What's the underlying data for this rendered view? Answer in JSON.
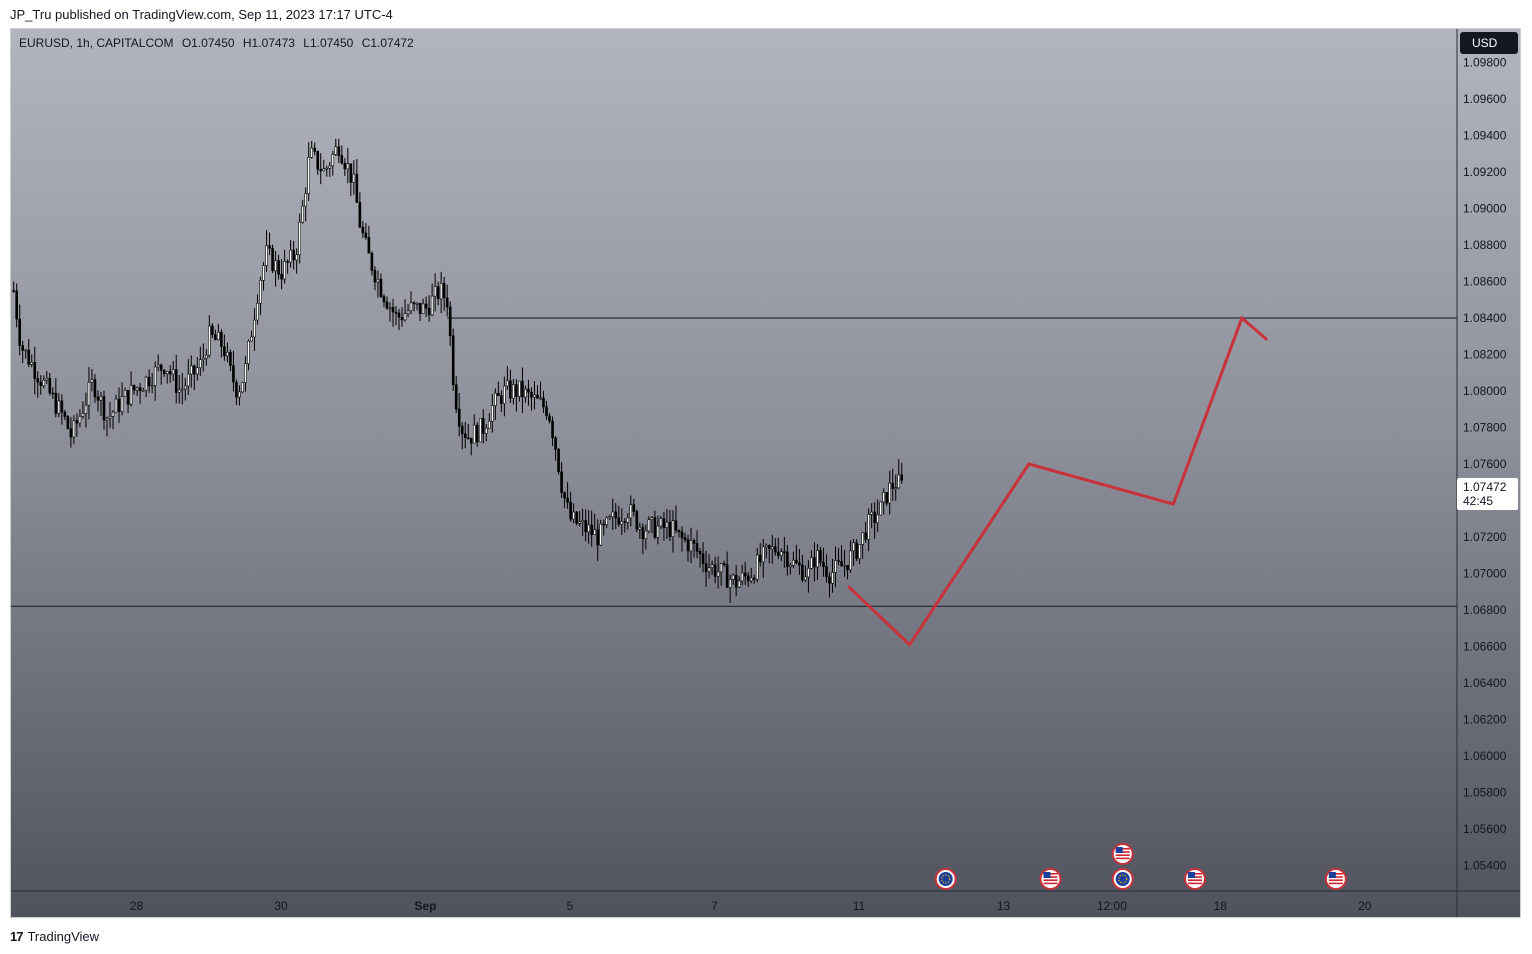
{
  "header": {
    "published_text": "JP_Tru published on TradingView.com, Sep 11, 2023 17:17 UTC-4"
  },
  "legend": {
    "symbol": "EURUSD, 1h, CAPITALCOM",
    "open": "O1.07450",
    "high": "H1.07473",
    "low": "L1.07450",
    "close": "C1.07472"
  },
  "currency_button": "USD",
  "last_price": {
    "price": "1.07472",
    "countdown": "42:45"
  },
  "footer": {
    "logo_text": "TradingView"
  },
  "colors": {
    "projection": "#c8323a",
    "candles": "#000000",
    "levels": "#2a2e39"
  },
  "chart_data": {
    "type": "candlestick",
    "ylim": [
      1.052,
      1.098
    ],
    "y_ticks": [
      "1.05400",
      "1.05600",
      "1.05800",
      "1.06000",
      "1.06200",
      "1.06400",
      "1.06600",
      "1.06800",
      "1.07000",
      "1.07200",
      "1.07400",
      "1.07600",
      "1.07800",
      "1.08000",
      "1.08200",
      "1.08400",
      "1.08600",
      "1.08800",
      "1.09000",
      "1.09200",
      "1.09400",
      "1.09600",
      "1.09800"
    ],
    "x_ticks": [
      {
        "label": "28",
        "pos": 0
      },
      {
        "label": "30",
        "pos": 2
      },
      {
        "label": "Sep",
        "pos": 4
      },
      {
        "label": "5",
        "pos": 6
      },
      {
        "label": "7",
        "pos": 8
      },
      {
        "label": "11",
        "pos": 10
      },
      {
        "label": "13",
        "pos": 12
      },
      {
        "label": "12:00",
        "pos": 13.5
      },
      {
        "label": "18",
        "pos": 15
      },
      {
        "label": "20",
        "pos": 17
      }
    ],
    "price_path": [
      [
        -1.7,
        1.0855
      ],
      [
        -1.6,
        1.0825
      ],
      [
        -1.3,
        1.0805
      ],
      [
        -1.0,
        1.0785
      ],
      [
        -0.9,
        1.0775
      ],
      [
        -0.6,
        1.0805
      ],
      [
        -0.4,
        1.0785
      ],
      [
        -0.2,
        1.0795
      ],
      [
        0.1,
        1.0805
      ],
      [
        0.4,
        1.0815
      ],
      [
        0.6,
        1.08
      ],
      [
        0.9,
        1.0815
      ],
      [
        1.0,
        1.083
      ],
      [
        1.2,
        1.0825
      ],
      [
        1.3,
        1.081
      ],
      [
        1.4,
        1.08
      ],
      [
        1.5,
        1.081
      ],
      [
        1.6,
        1.0835
      ],
      [
        1.7,
        1.086
      ],
      [
        1.8,
        1.0875
      ],
      [
        2.0,
        1.0865
      ],
      [
        2.1,
        1.087
      ],
      [
        2.2,
        1.0875
      ],
      [
        2.3,
        1.09
      ],
      [
        2.4,
        1.093
      ],
      [
        2.6,
        1.092
      ],
      [
        2.8,
        1.0935
      ],
      [
        3.0,
        1.0915
      ],
      [
        3.1,
        1.089
      ],
      [
        3.2,
        1.0875
      ],
      [
        3.4,
        1.0855
      ],
      [
        3.6,
        1.084
      ],
      [
        3.8,
        1.0845
      ],
      [
        4.0,
        1.0845
      ],
      [
        4.2,
        1.0855
      ],
      [
        4.3,
        1.085
      ],
      [
        4.4,
        1.08
      ],
      [
        4.5,
        1.078
      ],
      [
        4.6,
        1.0775
      ],
      [
        4.8,
        1.078
      ],
      [
        4.9,
        1.079
      ],
      [
        5.1,
        1.08
      ],
      [
        5.3,
        1.08
      ],
      [
        5.5,
        1.0795
      ],
      [
        5.7,
        1.079
      ],
      [
        5.8,
        1.077
      ],
      [
        5.9,
        1.0745
      ],
      [
        6.0,
        1.073
      ],
      [
        6.2,
        1.0725
      ],
      [
        6.4,
        1.072
      ],
      [
        6.6,
        1.073
      ],
      [
        6.8,
        1.0735
      ],
      [
        7.0,
        1.0725
      ],
      [
        7.2,
        1.0725
      ],
      [
        7.4,
        1.0725
      ],
      [
        7.5,
        1.072
      ],
      [
        7.7,
        1.0715
      ],
      [
        7.9,
        1.0705
      ],
      [
        8.1,
        1.07
      ],
      [
        8.3,
        1.0695
      ],
      [
        8.5,
        1.07
      ],
      [
        8.7,
        1.071
      ],
      [
        8.9,
        1.0715
      ],
      [
        9.1,
        1.0705
      ],
      [
        9.3,
        1.07
      ],
      [
        9.4,
        1.071
      ],
      [
        9.6,
        1.07
      ],
      [
        9.8,
        1.0705
      ],
      [
        10.0,
        1.0715
      ],
      [
        10.1,
        1.0725
      ],
      [
        10.2,
        1.073
      ],
      [
        10.3,
        1.0735
      ],
      [
        10.4,
        1.0745
      ],
      [
        10.5,
        1.075
      ],
      [
        10.6,
        1.0748
      ]
    ],
    "horizontal_levels": [
      1.084,
      1.0682
    ],
    "projection_path": [
      [
        9.85,
        1.0693
      ],
      [
        10.7,
        1.0661
      ],
      [
        12.35,
        1.076
      ],
      [
        14.35,
        1.0738
      ],
      [
        15.3,
        1.084
      ],
      [
        15.65,
        1.0828
      ]
    ],
    "event_markers": [
      {
        "x": 11.2,
        "row": 0,
        "type": "eu"
      },
      {
        "x": 12.65,
        "row": 0,
        "type": "us"
      },
      {
        "x": 13.65,
        "row": 0,
        "type": "eu"
      },
      {
        "x": 13.65,
        "row": 1,
        "type": "us"
      },
      {
        "x": 14.65,
        "row": 0,
        "type": "us"
      },
      {
        "x": 16.6,
        "row": 0,
        "type": "us"
      }
    ]
  }
}
